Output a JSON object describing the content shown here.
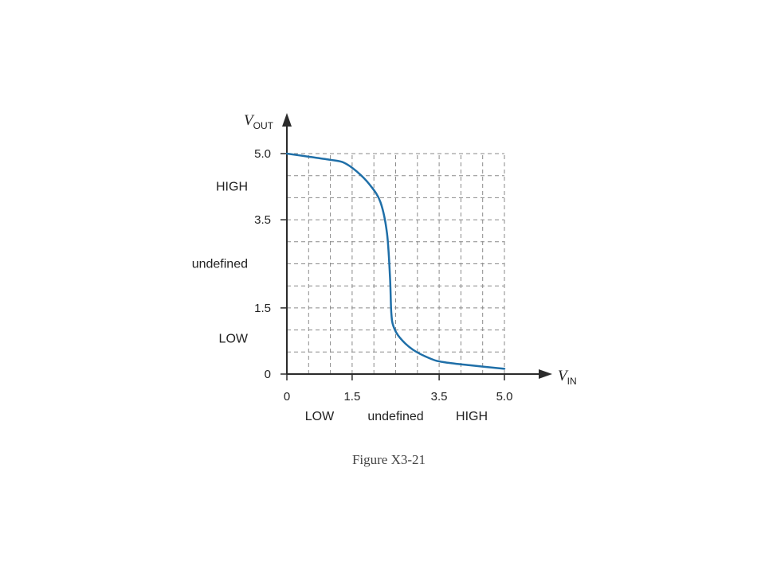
{
  "chart_data": {
    "type": "line",
    "title": "",
    "xlabel": {
      "main": "V",
      "sub": "IN"
    },
    "ylabel": {
      "main": "V",
      "sub": "OUT"
    },
    "xlim": [
      0,
      5.0
    ],
    "ylim": [
      0,
      5.0
    ],
    "grid": true,
    "x_ticks": [
      {
        "value": 0,
        "label": "0"
      },
      {
        "value": 1.5,
        "label": "1.5"
      },
      {
        "value": 3.5,
        "label": "3.5"
      },
      {
        "value": 5.0,
        "label": "5.0"
      }
    ],
    "y_ticks": [
      {
        "value": 0,
        "label": "0"
      },
      {
        "value": 1.5,
        "label": "1.5"
      },
      {
        "value": 3.5,
        "label": "3.5"
      },
      {
        "value": 5.0,
        "label": "5.0"
      }
    ],
    "grid_step": 0.5,
    "x_regions": [
      {
        "label": "LOW",
        "center": 0.75
      },
      {
        "label": "undefined",
        "center": 2.5
      },
      {
        "label": "HIGH",
        "center": 4.25
      }
    ],
    "y_regions": [
      {
        "label": "HIGH",
        "center": 4.25
      },
      {
        "label": "undefined",
        "center": 2.5
      },
      {
        "label": "LOW",
        "center": 0.8
      }
    ],
    "series": [
      {
        "color": "#1f6fa8",
        "points": [
          [
            0.0,
            5.0
          ],
          [
            0.5,
            4.93
          ],
          [
            1.0,
            4.86
          ],
          [
            1.3,
            4.8
          ],
          [
            1.6,
            4.6
          ],
          [
            1.9,
            4.3
          ],
          [
            2.15,
            3.9
          ],
          [
            2.3,
            3.2
          ],
          [
            2.37,
            2.2
          ],
          [
            2.4,
            1.4
          ],
          [
            2.45,
            1.08
          ],
          [
            2.6,
            0.82
          ],
          [
            2.9,
            0.55
          ],
          [
            3.3,
            0.35
          ],
          [
            3.6,
            0.27
          ],
          [
            4.2,
            0.2
          ],
          [
            5.0,
            0.12
          ]
        ]
      }
    ]
  },
  "caption": "Figure X3-21"
}
